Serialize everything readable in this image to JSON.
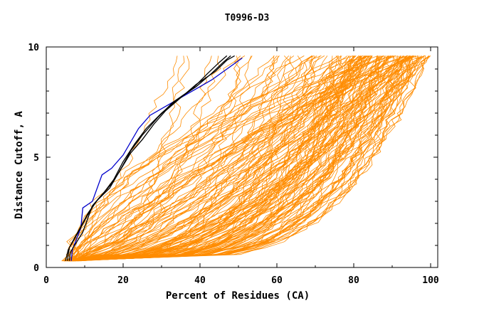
{
  "chart_data": {
    "type": "line",
    "title": "T0996-D3",
    "xlabel": "Percent of Residues (CA)",
    "ylabel": "Distance Cutoff, A",
    "xlim": [
      0,
      100
    ],
    "ylim": [
      0,
      10
    ],
    "x_ticks": [
      0,
      20,
      40,
      60,
      80,
      100
    ],
    "x_tick_labels": [
      "0",
      "20",
      "40",
      "60",
      "80",
      "100"
    ],
    "y_ticks": [
      0,
      5,
      10
    ],
    "y_tick_labels": [
      "0",
      "5",
      "10"
    ],
    "grid": false,
    "colors": {
      "bulk": "#ff8c00",
      "highlight_blue": "#0000cc",
      "highlight_black": "#000000"
    },
    "bulk_series_count": 160,
    "highlight_series": [
      {
        "color": "#0000cc",
        "points": [
          [
            6.5,
            0.3
          ],
          [
            6.8,
            0.8
          ],
          [
            9.0,
            1.8
          ],
          [
            9.5,
            2.7
          ],
          [
            12,
            3.0
          ],
          [
            14.5,
            4.2
          ],
          [
            17,
            4.5
          ],
          [
            20,
            5.1
          ],
          [
            24,
            6.3
          ],
          [
            27,
            6.9
          ],
          [
            32,
            7.4
          ],
          [
            37,
            7.9
          ],
          [
            43,
            8.5
          ],
          [
            47,
            9.0
          ],
          [
            51,
            9.5
          ]
        ]
      },
      {
        "color": "#000000",
        "points": [
          [
            5.5,
            0.3
          ],
          [
            6.0,
            0.9
          ],
          [
            8.5,
            1.7
          ],
          [
            11,
            2.5
          ],
          [
            13.5,
            3.1
          ],
          [
            17,
            3.8
          ],
          [
            20,
            4.8
          ],
          [
            23,
            5.6
          ],
          [
            26,
            6.3
          ],
          [
            30,
            7.0
          ],
          [
            34,
            7.6
          ],
          [
            39,
            8.2
          ],
          [
            43,
            8.8
          ],
          [
            46,
            9.3
          ],
          [
            48,
            9.6
          ]
        ]
      },
      {
        "color": "#000000",
        "points": [
          [
            5.0,
            0.3
          ],
          [
            5.7,
            0.8
          ],
          [
            8.0,
            1.5
          ],
          [
            10.5,
            2.3
          ],
          [
            13,
            3.0
          ],
          [
            16.5,
            3.6
          ],
          [
            19.5,
            4.5
          ],
          [
            22,
            5.3
          ],
          [
            25,
            6.0
          ],
          [
            29,
            6.8
          ],
          [
            33,
            7.5
          ],
          [
            38,
            8.1
          ],
          [
            42,
            8.8
          ],
          [
            45,
            9.3
          ],
          [
            47,
            9.6
          ]
        ]
      },
      {
        "color": "#000000",
        "points": [
          [
            6.0,
            0.3
          ],
          [
            6.3,
            0.7
          ],
          [
            9.5,
            1.6
          ],
          [
            12,
            2.8
          ],
          [
            15,
            3.4
          ],
          [
            18.5,
            4.2
          ],
          [
            22,
            5.2
          ],
          [
            25,
            5.8
          ],
          [
            28,
            6.5
          ],
          [
            31,
            7.1
          ],
          [
            35,
            7.7
          ],
          [
            39,
            8.3
          ],
          [
            44,
            8.9
          ],
          [
            47,
            9.4
          ],
          [
            49,
            9.6
          ]
        ]
      }
    ]
  }
}
